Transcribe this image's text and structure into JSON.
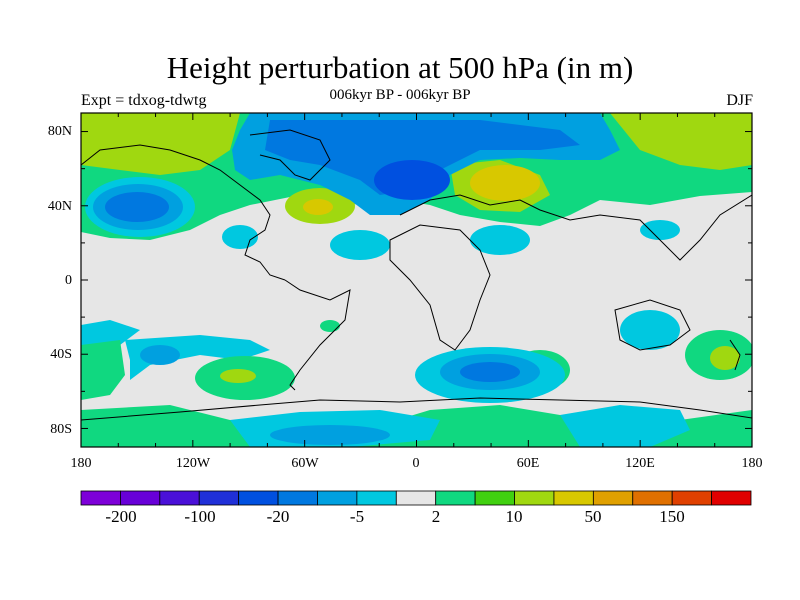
{
  "title": "Height perturbation at 500 hPa (in m)",
  "left_header": "Expt = tdxog-tdwtg",
  "center_header": "006kyr BP - 006kyr BP",
  "right_header": "DJF",
  "map": {
    "projection": "cylindrical equidistant",
    "lon_range": [
      -180,
      180
    ],
    "lat_range": [
      -90,
      90
    ],
    "lat_ticks": [
      "80N",
      "40N",
      "0",
      "40S",
      "80S"
    ],
    "lon_ticks": [
      "180",
      "120W",
      "60W",
      "0",
      "60E",
      "120E",
      "180"
    ],
    "missing_land_color": "#e6e6e6"
  },
  "colorbar": {
    "colors": [
      "#7d00d8",
      "#6800d8",
      "#4a10d8",
      "#2030d8",
      "#0050e0",
      "#0078e0",
      "#00a0e0",
      "#00c8e0",
      "#e6e6e6",
      "#10d880",
      "#40d010",
      "#a0d810",
      "#d8c800",
      "#e0a000",
      "#e07000",
      "#e04000",
      "#e00000"
    ],
    "labels": [
      "-200",
      "-100",
      "-20",
      "-5",
      "2",
      "10",
      "50",
      "150"
    ]
  }
}
